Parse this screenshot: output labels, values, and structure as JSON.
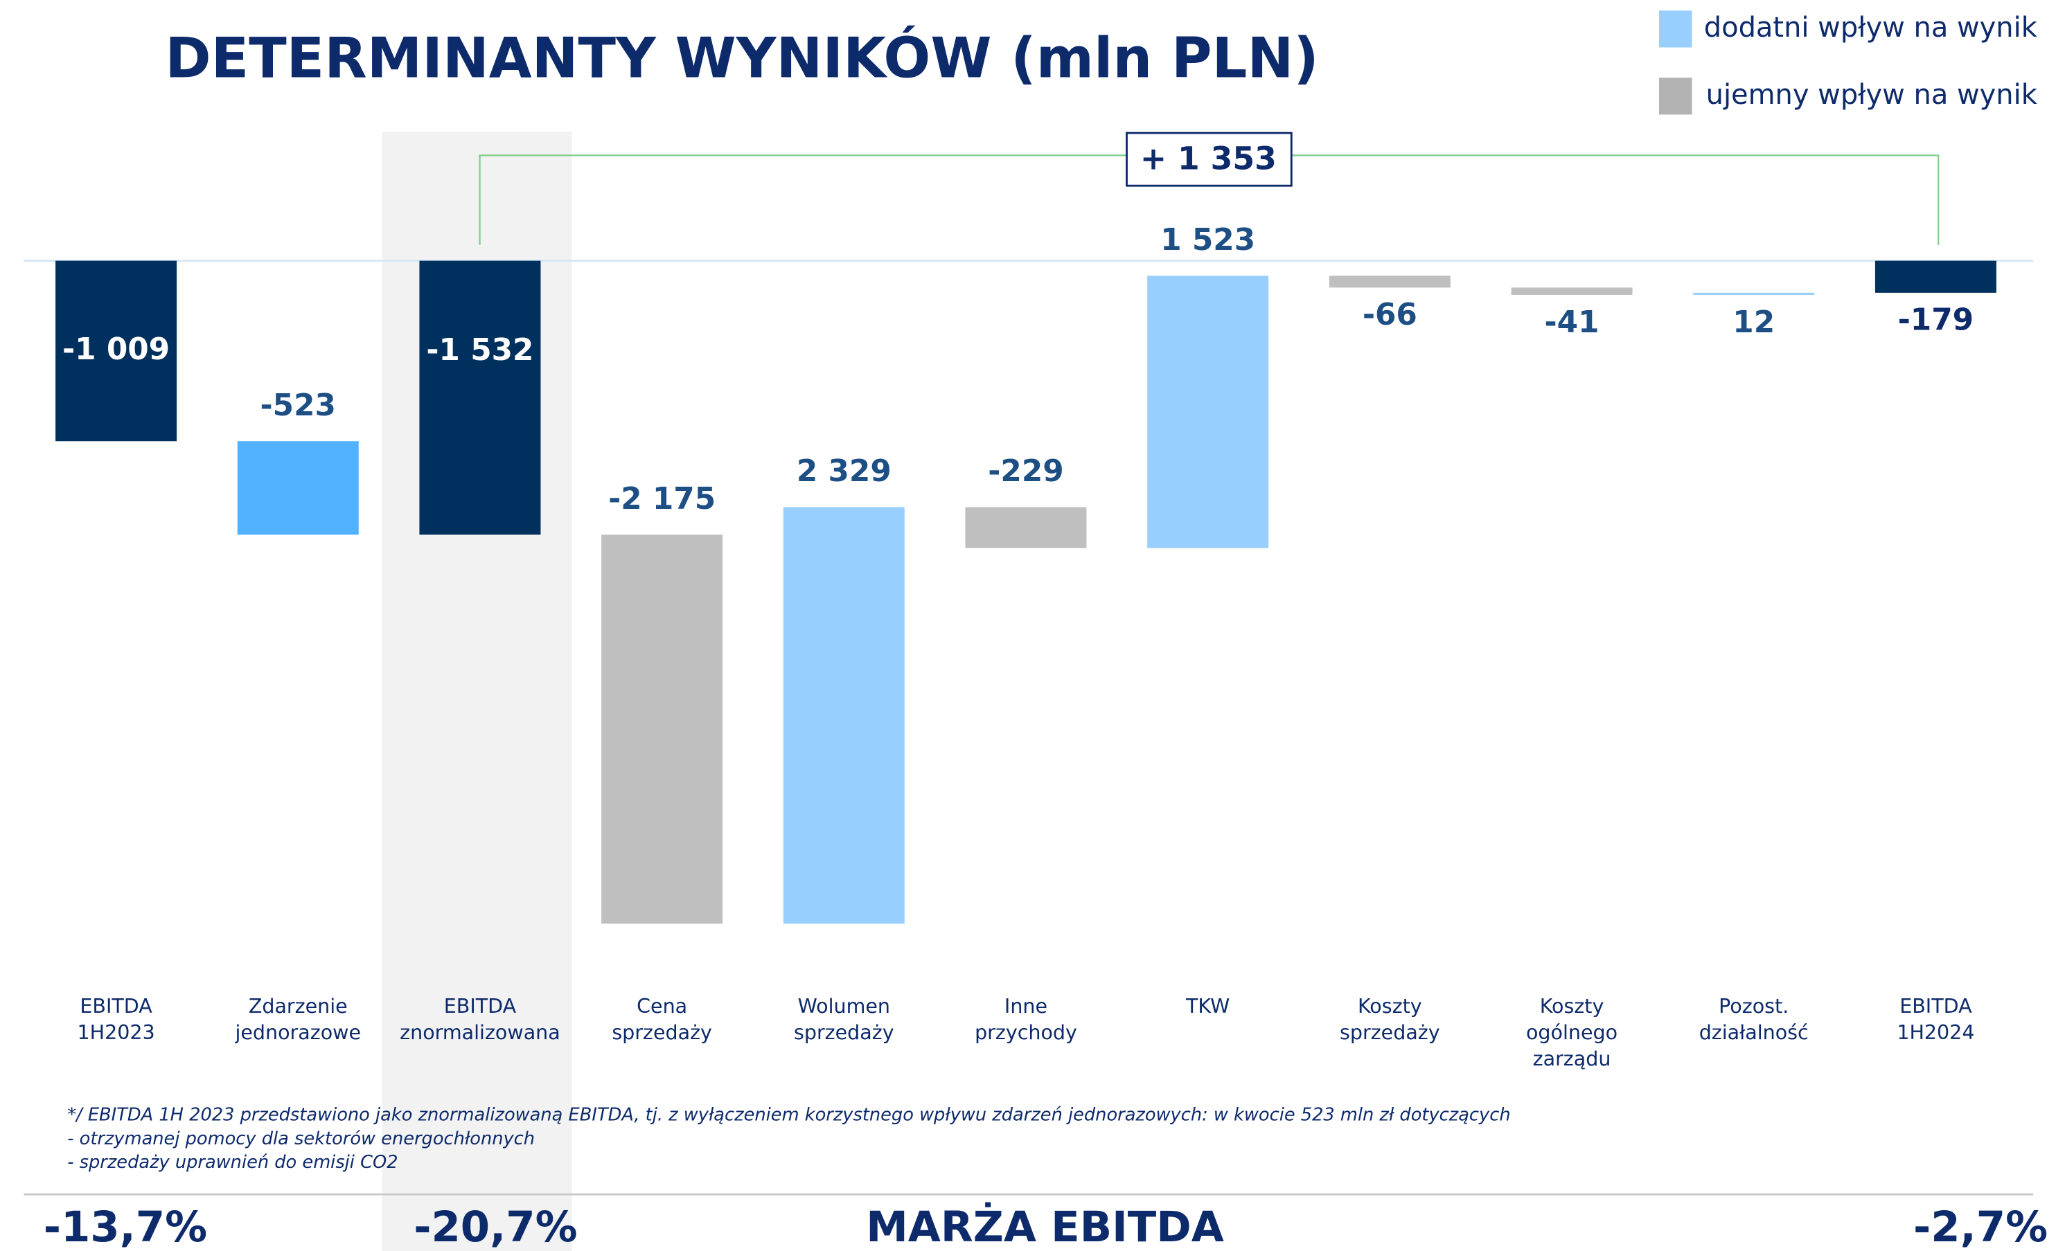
{
  "chart_data": {
    "type": "waterfall",
    "title": "DETERMINANTY WYNIKÓW (mln PLN)",
    "legend": [
      {
        "name": "dodatni wpływ na wynik",
        "color": "#99cfff"
      },
      {
        "name": "ujemny wpływ na wynik",
        "color": "#b3b3b3"
      }
    ],
    "categories": [
      [
        "EBITDA",
        "1H2023"
      ],
      [
        "Zdarzenie",
        "jednorazowe"
      ],
      [
        "EBITDA",
        "znormalizowana"
      ],
      [
        "Cena",
        "sprzedaży"
      ],
      [
        "Wolumen",
        "sprzedaży"
      ],
      [
        "Inne",
        "przychody"
      ],
      [
        "TKW"
      ],
      [
        "Koszty",
        "sprzedaży"
      ],
      [
        "Koszty",
        "ogólnego",
        "zarządu"
      ],
      [
        "Pozost.",
        "działalność"
      ],
      [
        "EBITDA",
        "1H2024"
      ]
    ],
    "measure": [
      "total",
      "relative",
      "total",
      "relative",
      "relative",
      "relative",
      "relative",
      "relative",
      "relative",
      "relative",
      "total"
    ],
    "values": [
      -1009,
      -523,
      -1532,
      -2175,
      2329,
      -229,
      1523,
      -66,
      -41,
      12,
      -179
    ],
    "value_labels": [
      "-1 009",
      "-523",
      "-1 532",
      "-2 175",
      "2 329",
      "-229",
      "1 523",
      "-66",
      "-41",
      "12",
      "-179"
    ],
    "colors": [
      "#00305e",
      "#52b2ff",
      "#00305e",
      "#bfbfbf",
      "#99cfff",
      "#bfbfbf",
      "#99cfff",
      "#bfbfbf",
      "#bfbfbf",
      "#99cfff",
      "#00305e"
    ],
    "annotation": "+ 1 353",
    "footnote": [
      "*/ EBITDA 1H 2023 przedstawiono jako znormalizowaną EBITDA, tj. z wyłączeniem korzystnego wpływu zdarzeń jednorazowych: w kwocie 523 mln zł dotyczących",
      "-  otrzymanej pomocy dla sektorów energochłonnych",
      "- sprzedaży uprawnień do emisji CO2"
    ],
    "margin_title": "MARŻA EBITDA",
    "margins": [
      "-13,7%",
      "-20,7%",
      "-2,7%"
    ]
  }
}
